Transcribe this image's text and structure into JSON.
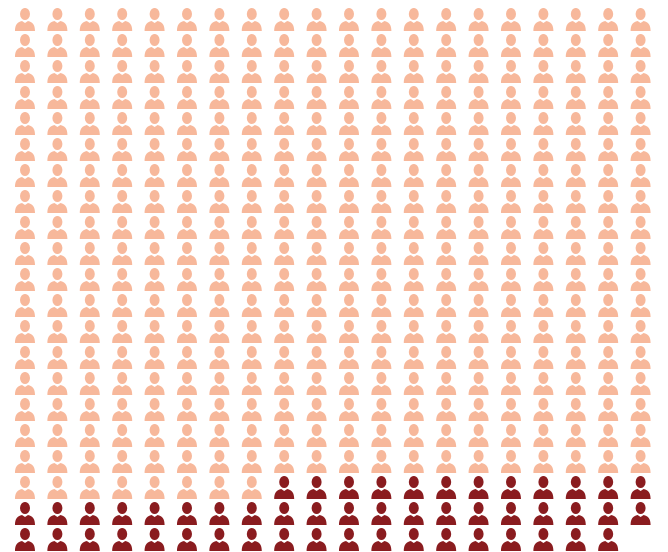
{
  "chart_data": {
    "type": "pictogram",
    "values": [
      368,
      51
    ],
    "colors": [
      "#f7b89b",
      "#8a1c1f"
    ]
  }
}
